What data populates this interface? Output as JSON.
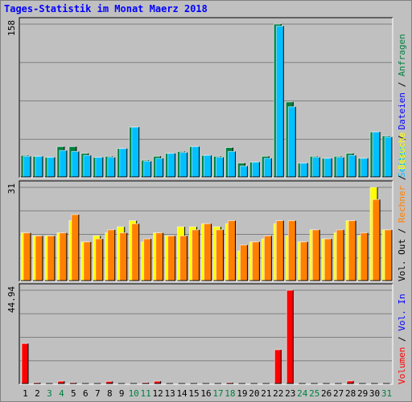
{
  "title": "Tages-Statistik im Monat Maerz 2018",
  "colors": {
    "anfragen": "#008040",
    "dateien": "#00c0ff",
    "besuche": "#ffff00",
    "rechner": "#ff8000",
    "volumen": "#ff0000",
    "weekend_label": "#008040",
    "weekday_label": "#000000",
    "background": "#c0c0c0",
    "gridline": "#808080"
  },
  "axis_max_labels": {
    "top": "158",
    "middle": "31",
    "bottom": "44.94"
  },
  "legend": {
    "top": [
      {
        "text": "Anfragen",
        "color": "#008040"
      },
      {
        "text": " / ",
        "color": "#000000"
      },
      {
        "text": "Dateien",
        "color": "#0000ff"
      },
      {
        "text": " / ",
        "color": "#000000"
      },
      {
        "text": "Seiten",
        "color": "#00c0ff"
      }
    ],
    "middle": [
      {
        "text": "Besuche",
        "color": "#ffff00"
      },
      {
        "text": " / ",
        "color": "#000000"
      },
      {
        "text": "Rechner",
        "color": "#ff8000"
      },
      {
        "text": " / ",
        "color": "#000000"
      },
      {
        "text": "Vol. Out",
        "color": "#000000"
      }
    ],
    "bottom": [
      {
        "text": "Vol. In",
        "color": "#0000ff"
      },
      {
        "text": " / ",
        "color": "#000000"
      },
      {
        "text": "Volumen",
        "color": "#ff0000"
      }
    ]
  },
  "chart_data": {
    "type": "bar",
    "title": "Tages-Statistik im Monat Maerz 2018",
    "categories": [
      "1",
      "2",
      "3",
      "4",
      "5",
      "6",
      "7",
      "8",
      "9",
      "10",
      "11",
      "12",
      "13",
      "14",
      "15",
      "16",
      "17",
      "18",
      "19",
      "20",
      "21",
      "22",
      "23",
      "24",
      "25",
      "26",
      "27",
      "28",
      "29",
      "30",
      "31"
    ],
    "weekend_days": [
      "3",
      "4",
      "10",
      "11",
      "17",
      "18",
      "24",
      "25",
      "31"
    ],
    "panels": [
      {
        "name": "requests",
        "ylim": [
          0,
          158
        ],
        "series": [
          {
            "name": "Anfragen",
            "color": "#008040",
            "values": [
              23,
              22,
              21,
              32,
              32,
              25,
              21,
              22,
              30,
              52,
              18,
              22,
              25,
              27,
              32,
              23,
              22,
              31,
              15,
              16,
              22,
              158,
              78,
              15,
              22,
              20,
              22,
              25,
              20,
              47,
              43
            ]
          },
          {
            "name": "Dateien",
            "color": "#00c0ff",
            "values": [
              22,
              22,
              21,
              28,
              27,
              23,
              21,
              21,
              30,
              52,
              17,
              20,
              25,
              26,
              32,
              23,
              21,
              27,
              12,
              16,
              20,
              156,
              73,
              15,
              21,
              20,
              21,
              23,
              20,
              47,
              42
            ]
          }
        ]
      },
      {
        "name": "visits",
        "ylim": [
          0,
          31
        ],
        "series": [
          {
            "name": "Besuche",
            "color": "#ffff00",
            "values": [
              16,
              15,
              15,
              16,
              20,
              13,
              15,
              16,
              18,
              20,
              13,
              16,
              15,
              18,
              18,
              19,
              18,
              19,
              10,
              13,
              14,
              19,
              15,
              13,
              17,
              14,
              16,
              20,
              15,
              31,
              17
            ]
          },
          {
            "name": "Rechner",
            "color": "#ff8000",
            "values": [
              16,
              15,
              15,
              16,
              22,
              13,
              14,
              17,
              16,
              19,
              14,
              16,
              15,
              15,
              17,
              19,
              17,
              20,
              12,
              13,
              15,
              20,
              20,
              13,
              17,
              14,
              17,
              20,
              16,
              27,
              17
            ]
          }
        ]
      },
      {
        "name": "volume",
        "ylim": [
          0,
          44.94
        ],
        "series": [
          {
            "name": "Volumen",
            "color": "#ff0000",
            "values": [
              19.5,
              0.8,
              0.3,
              1.5,
              0.8,
              0.3,
              0.3,
              1.4,
              0.3,
              0.3,
              0.8,
              1.5,
              0.3,
              0.3,
              0.3,
              0.3,
              0.3,
              0.8,
              0.3,
              0.3,
              0.3,
              16.5,
              44.94,
              0.3,
              0.3,
              0.3,
              0.3,
              1.6,
              0.3,
              0.3,
              0.5
            ]
          }
        ]
      }
    ],
    "grid": true
  }
}
